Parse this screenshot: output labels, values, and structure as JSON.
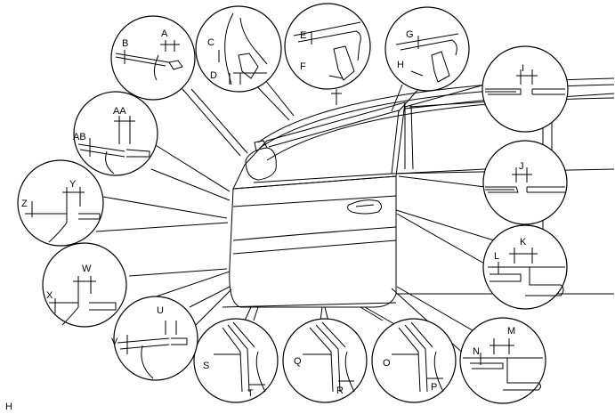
{
  "figure_code": "H",
  "callouts": {
    "A": "A",
    "B": "B",
    "C": "C",
    "D": "D",
    "E": "E",
    "F": "F",
    "G": "G",
    "H": "H",
    "I": "I",
    "J": "J",
    "K": "K",
    "L": "L",
    "M": "M",
    "N": "N",
    "O": "O",
    "P": "P",
    "Q": "Q",
    "R": "R",
    "S": "S",
    "T": "T",
    "U": "U",
    "V": "V",
    "W": "W",
    "X": "X",
    "Y": "Y",
    "Z": "Z",
    "AA": "AA",
    "AB": "AB"
  }
}
